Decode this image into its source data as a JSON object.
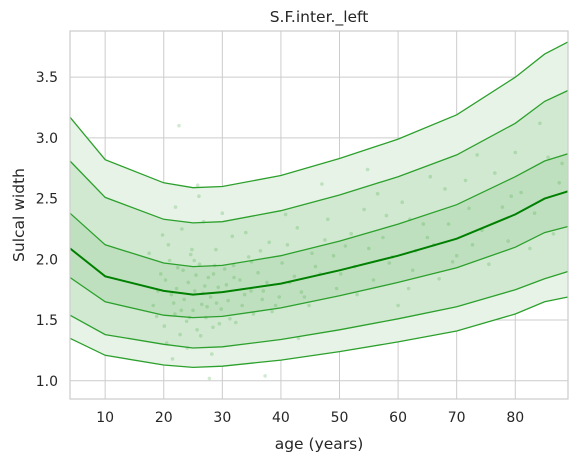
{
  "chart_data": {
    "type": "line",
    "title": "S.F.inter._left",
    "xlabel": "age (years)",
    "ylabel": "Sulcal width",
    "xlim": [
      4,
      89
    ],
    "ylim": [
      0.85,
      3.88
    ],
    "xticks": [
      10,
      20,
      30,
      40,
      50,
      60,
      70,
      80
    ],
    "yticks": [
      1.0,
      1.5,
      2.0,
      2.5,
      3.0,
      3.5
    ],
    "grid": true,
    "legend": "none",
    "colors": {
      "line": "#2ca02c",
      "median": "#008000",
      "band_outer": "#e6f3e6",
      "band_middle": "#d1e9d1",
      "band_inner": "#bfe0bf",
      "points": "#2ca02c",
      "grid": "#cccccc",
      "frame": "#cccccc"
    },
    "x": [
      4,
      10,
      20,
      25,
      30,
      40,
      50,
      60,
      70,
      80,
      85,
      89
    ],
    "series": [
      {
        "values": [
          3.17,
          2.82,
          2.63,
          2.59,
          2.6,
          2.69,
          2.83,
          2.99,
          3.19,
          3.5,
          3.69,
          3.79
        ]
      },
      {
        "values": [
          2.81,
          2.51,
          2.33,
          2.3,
          2.31,
          2.4,
          2.53,
          2.68,
          2.86,
          3.12,
          3.3,
          3.39
        ]
      },
      {
        "values": [
          2.38,
          2.12,
          1.97,
          1.94,
          1.95,
          2.03,
          2.15,
          2.29,
          2.45,
          2.68,
          2.81,
          2.87
        ]
      },
      {
        "values": [
          2.09,
          1.86,
          1.74,
          1.71,
          1.73,
          1.8,
          1.91,
          2.03,
          2.17,
          2.37,
          2.5,
          2.56
        ]
      },
      {
        "values": [
          1.85,
          1.65,
          1.54,
          1.52,
          1.53,
          1.6,
          1.7,
          1.81,
          1.93,
          2.1,
          2.22,
          2.27
        ]
      },
      {
        "values": [
          1.54,
          1.38,
          1.3,
          1.27,
          1.28,
          1.34,
          1.42,
          1.51,
          1.61,
          1.75,
          1.84,
          1.9
        ]
      },
      {
        "values": [
          1.35,
          1.21,
          1.13,
          1.11,
          1.12,
          1.17,
          1.24,
          1.32,
          1.41,
          1.55,
          1.65,
          1.69
        ]
      }
    ],
    "scatter": {
      "points": [
        [
          18.2,
          1.62
        ],
        [
          19.5,
          1.88
        ],
        [
          20.1,
          1.45
        ],
        [
          20.8,
          2.12
        ],
        [
          21.3,
          1.71
        ],
        [
          21.9,
          1.55
        ],
        [
          22.4,
          1.93
        ],
        [
          22.8,
          1.38
        ],
        [
          23.1,
          2.25
        ],
        [
          23.5,
          1.67
        ],
        [
          23.9,
          1.49
        ],
        [
          24.2,
          1.81
        ],
        [
          24.6,
          2.04
        ],
        [
          25.0,
          1.58
        ],
        [
          25.3,
          1.74
        ],
        [
          25.7,
          1.42
        ],
        [
          26.1,
          1.96
        ],
        [
          26.5,
          1.63
        ],
        [
          26.8,
          2.31
        ],
        [
          27.2,
          1.52
        ],
        [
          27.6,
          1.85
        ],
        [
          28.0,
          1.69
        ],
        [
          28.4,
          1.44
        ],
        [
          28.9,
          2.08
        ],
        [
          29.3,
          1.77
        ],
        [
          29.8,
          1.59
        ],
        [
          30.4,
          1.92
        ],
        [
          31.0,
          1.66
        ],
        [
          31.7,
          2.19
        ],
        [
          32.3,
          1.48
        ],
        [
          33.0,
          1.83
        ],
        [
          33.8,
          1.71
        ],
        [
          34.5,
          2.02
        ],
        [
          35.3,
          1.55
        ],
        [
          36.1,
          1.89
        ],
        [
          37.0,
          1.74
        ],
        [
          38.0,
          2.14
        ],
        [
          39.1,
          1.62
        ],
        [
          40.2,
          1.97
        ],
        [
          41.5,
          1.81
        ],
        [
          42.8,
          2.26
        ],
        [
          44.0,
          1.69
        ],
        [
          45.3,
          2.05
        ],
        [
          46.7,
          1.88
        ],
        [
          48.0,
          2.33
        ],
        [
          49.5,
          1.76
        ],
        [
          51.0,
          2.11
        ],
        [
          52.6,
          1.94
        ],
        [
          54.2,
          2.41
        ],
        [
          55.8,
          1.83
        ],
        [
          57.4,
          2.18
        ],
        [
          59.0,
          2.02
        ],
        [
          60.7,
          2.47
        ],
        [
          62.5,
          1.91
        ],
        [
          64.3,
          2.29
        ],
        [
          66.1,
          2.12
        ],
        [
          68.0,
          2.58
        ],
        [
          70.0,
          2.03
        ],
        [
          72.1,
          2.42
        ],
        [
          74.3,
          2.24
        ],
        [
          76.5,
          2.71
        ],
        [
          78.8,
          2.15
        ],
        [
          81.0,
          2.55
        ],
        [
          83.3,
          2.38
        ],
        [
          85.6,
          2.84
        ],
        [
          20.5,
          1.31
        ],
        [
          22.0,
          2.43
        ],
        [
          24.0,
          1.27
        ],
        [
          26.0,
          2.52
        ],
        [
          28.2,
          1.22
        ],
        [
          30.0,
          2.38
        ],
        [
          19.0,
          1.74
        ],
        [
          21.0,
          1.99
        ],
        [
          23.0,
          1.58
        ],
        [
          25.5,
          1.87
        ],
        [
          27.0,
          1.78
        ],
        [
          29.0,
          1.64
        ],
        [
          32.0,
          1.85
        ],
        [
          35.0,
          1.98
        ],
        [
          38.5,
          1.57
        ],
        [
          43.5,
          1.73
        ],
        [
          47.5,
          2.16
        ],
        [
          53.0,
          1.71
        ],
        [
          58.0,
          2.36
        ],
        [
          63.0,
          2.07
        ],
        [
          67.0,
          1.84
        ],
        [
          71.5,
          2.65
        ],
        [
          75.5,
          1.96
        ],
        [
          80.0,
          2.88
        ],
        [
          86.5,
          2.21
        ],
        [
          17.5,
          2.05
        ],
        [
          22.6,
          3.1
        ],
        [
          21.5,
          1.18
        ],
        [
          24.8,
          2.08
        ],
        [
          26.3,
          1.37
        ],
        [
          28.7,
          1.95
        ],
        [
          31.3,
          1.51
        ],
        [
          34.0,
          2.22
        ],
        [
          36.8,
          1.67
        ],
        [
          40.8,
          2.37
        ],
        [
          44.8,
          1.62
        ],
        [
          50.2,
          1.88
        ],
        [
          56.5,
          2.54
        ],
        [
          61.8,
          1.76
        ],
        [
          65.5,
          2.68
        ],
        [
          69.3,
          1.98
        ],
        [
          73.5,
          2.86
        ],
        [
          77.8,
          2.43
        ],
        [
          82.5,
          2.09
        ],
        [
          87.5,
          2.63
        ],
        [
          18.8,
          1.53
        ],
        [
          20.3,
          1.83
        ],
        [
          21.7,
          1.64
        ],
        [
          22.2,
          1.76
        ],
        [
          23.3,
          1.91
        ],
        [
          24.4,
          1.52
        ],
        [
          25.2,
          1.99
        ],
        [
          26.7,
          1.72
        ],
        [
          27.4,
          1.61
        ],
        [
          28.5,
          1.88
        ],
        [
          29.5,
          1.47
        ],
        [
          30.7,
          1.79
        ],
        [
          31.9,
          1.95
        ],
        [
          33.4,
          1.62
        ],
        [
          34.9,
          1.74
        ],
        [
          36.5,
          2.07
        ],
        [
          37.6,
          1.81
        ],
        [
          39.7,
          1.69
        ],
        [
          41.1,
          2.12
        ],
        [
          42.3,
          1.86
        ],
        [
          45.9,
          1.94
        ],
        [
          49.0,
          2.03
        ],
        [
          52.0,
          2.21
        ],
        [
          55.0,
          2.09
        ],
        [
          58.5,
          1.97
        ],
        [
          62.0,
          2.33
        ],
        [
          65.0,
          2.18
        ],
        [
          68.6,
          2.29
        ],
        [
          72.7,
          2.12
        ],
        [
          79.3,
          2.52
        ],
        [
          37.3,
          1.04
        ],
        [
          27.8,
          1.02
        ],
        [
          47.0,
          2.62
        ],
        [
          54.8,
          2.74
        ],
        [
          43.0,
          1.35
        ],
        [
          25.8,
          2.61
        ],
        [
          19.8,
          2.2
        ],
        [
          60.0,
          1.62
        ],
        [
          84.2,
          3.12
        ],
        [
          88.0,
          2.79
        ]
      ]
    }
  }
}
